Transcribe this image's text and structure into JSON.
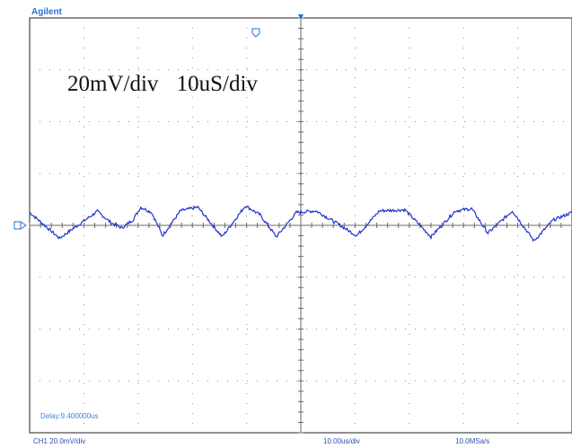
{
  "brand": "Agilent",
  "annotation": "20mV/div 10uS/div",
  "delay_readout": "Delay:9.400000us",
  "status_bar": {
    "channel": "CH1 20.0mV/div",
    "timebase": "10.00us/div",
    "sample_rate": "10.0MSa/s"
  },
  "colors": {
    "trace": "#1f33cc",
    "grid": "#8a8a8a",
    "brand": "#2a6fd6",
    "marker": "#2a6fd6"
  },
  "icons": {
    "trigger_marker": "trigger-position-marker",
    "ground_marker": "channel-ground-marker"
  },
  "chart_data": {
    "type": "line",
    "title": "",
    "xlabel": "",
    "ylabel": "",
    "x_unit": "divisions",
    "y_unit": "divisions",
    "xlim": [
      0,
      10
    ],
    "ylim": [
      -4,
      4
    ],
    "grid": true,
    "series": [
      {
        "values_x": [
          0,
          0.55,
          1.25,
          1.5,
          1.7,
          1.9,
          2.05,
          2.25,
          2.45,
          2.78,
          3.1,
          3.55,
          3.98,
          4.25,
          4.55,
          4.92,
          5.28,
          5.65,
          6.03,
          6.45,
          6.92,
          7.4,
          7.85,
          8.15,
          8.45,
          8.9,
          9.3,
          9.65,
          10
        ],
        "values_y": [
          0.25,
          -0.25,
          0.27,
          0.05,
          -0.05,
          0.1,
          0.35,
          0.25,
          -0.2,
          0.28,
          0.35,
          -0.22,
          0.38,
          0.2,
          -0.22,
          0.25,
          0.28,
          0.05,
          -0.2,
          0.28,
          0.3,
          -0.22,
          0.28,
          0.32,
          -0.15,
          0.28,
          -0.3,
          0.1,
          0.25
        ]
      }
    ]
  }
}
